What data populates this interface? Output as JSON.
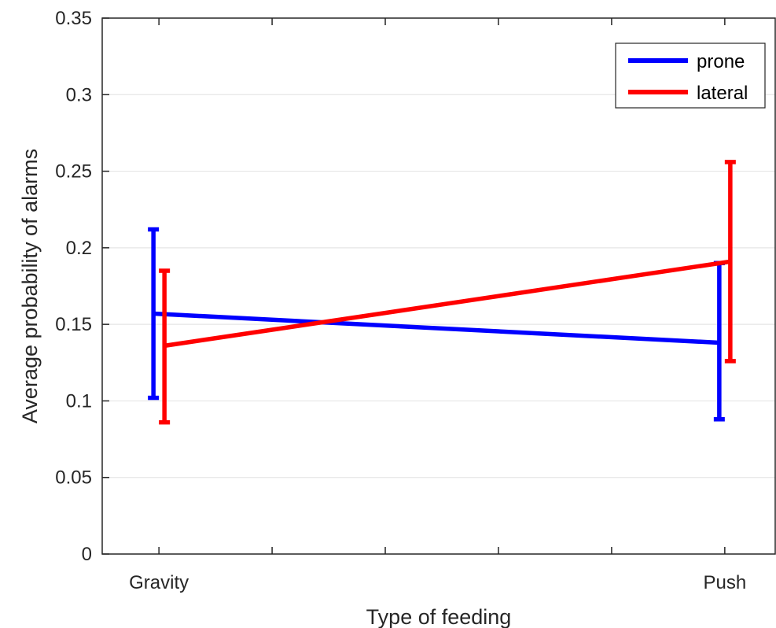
{
  "chart_data": {
    "type": "line",
    "title": "",
    "xlabel": "Type of feeding",
    "ylabel": "Average probability of alarms",
    "categories": [
      "Gravity",
      "Push"
    ],
    "ylim": [
      0,
      0.35
    ],
    "yticks": [
      "0",
      "0.05",
      "0.1",
      "0.15",
      "0.2",
      "0.25",
      "0.3",
      "0.35"
    ],
    "grid": "horizontal",
    "legend_position": "top-right",
    "series": [
      {
        "name": "prone",
        "color": "#0000ff",
        "values": [
          0.157,
          0.138
        ],
        "error_low": [
          0.102,
          0.088
        ],
        "error_high": [
          0.212,
          0.19
        ]
      },
      {
        "name": "lateral",
        "color": "#ff0000",
        "values": [
          0.136,
          0.191
        ],
        "error_low": [
          0.086,
          0.126
        ],
        "error_high": [
          0.185,
          0.256
        ]
      }
    ]
  }
}
